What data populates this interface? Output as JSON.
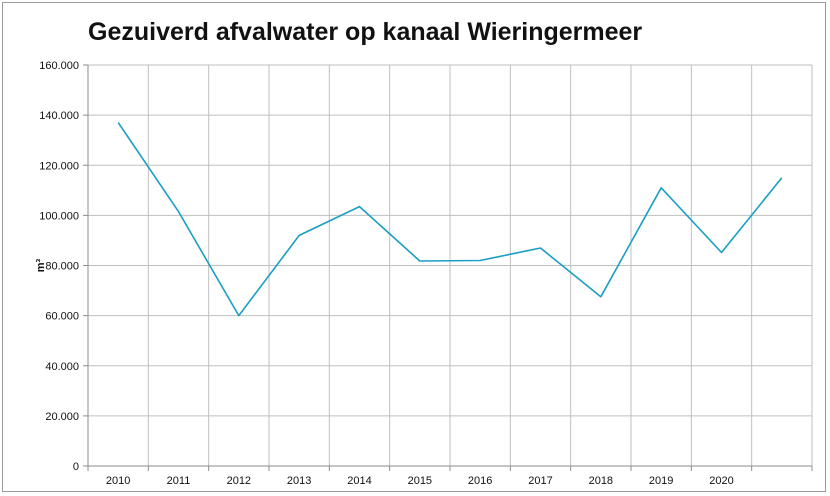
{
  "chart_data": {
    "type": "line",
    "title": "Gezuiverd afvalwater op kanaal Wieringermeer",
    "ylabel": "m³",
    "xlabel": "",
    "categories": [
      "2010",
      "2011",
      "2012",
      "2013",
      "2014",
      "2015",
      "2016",
      "2017",
      "2018",
      "2019",
      "2020",
      ""
    ],
    "series": [
      {
        "values": [
          137000,
          101500,
          60000,
          92000,
          103500,
          81800,
          82000,
          87000,
          67500,
          111000,
          85200,
          115000
        ]
      }
    ],
    "ylim": [
      0,
      160000
    ],
    "yticks": [
      0,
      20000,
      40000,
      60000,
      80000,
      100000,
      120000,
      140000,
      160000
    ],
    "ytick_labels": [
      "0",
      "20.000",
      "40.000",
      "60.000",
      "80.000",
      "100.000",
      "120.000",
      "140.000",
      "160.000"
    ],
    "grid": true,
    "line_color": "#1a9ec4"
  }
}
